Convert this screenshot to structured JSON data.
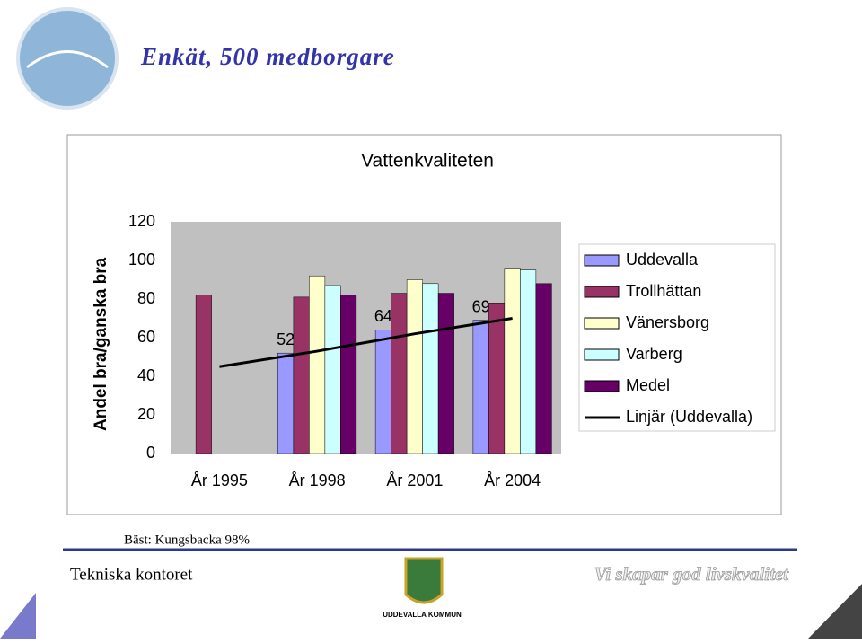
{
  "slide": {
    "title": "Enkät, 500 medborgare",
    "note": "Bäst: Kungsbacka 98%",
    "footer_left": "Tekniska kontoret",
    "footer_right": "Vi skapar god livskvalitet",
    "logo_text": "UDDEVALLA KOMMUN"
  },
  "chart_data": {
    "type": "bar",
    "title": "Vattenkvaliteten",
    "y_label": "Andel bra/ganska bra",
    "categories": [
      "År 1995",
      "År 1998",
      "År 2001",
      "År 2004"
    ],
    "series": [
      {
        "name": "Uddevalla",
        "color": "#9999ff",
        "values": [
          null,
          52,
          64,
          69
        ],
        "show_values": true
      },
      {
        "name": "Trollhättan",
        "color": "#993366",
        "values": [
          82,
          81,
          83,
          78
        ]
      },
      {
        "name": "Vänersborg",
        "color": "#ffffcc",
        "values": [
          null,
          92,
          90,
          96
        ]
      },
      {
        "name": "Varberg",
        "color": "#ccffff",
        "values": [
          null,
          87,
          88,
          95
        ]
      },
      {
        "name": "Medel",
        "color": "#660066",
        "values": [
          null,
          82,
          83,
          88
        ]
      },
      {
        "name": "Linjär (Uddevalla)",
        "color": "#000000",
        "type": "line",
        "values": [
          45,
          53,
          62,
          70
        ]
      }
    ],
    "ylim": [
      0,
      120
    ],
    "yticks": [
      0,
      20,
      40,
      60,
      80,
      100,
      120
    ],
    "plot_background": "#c0c0c0",
    "legend": "right"
  }
}
